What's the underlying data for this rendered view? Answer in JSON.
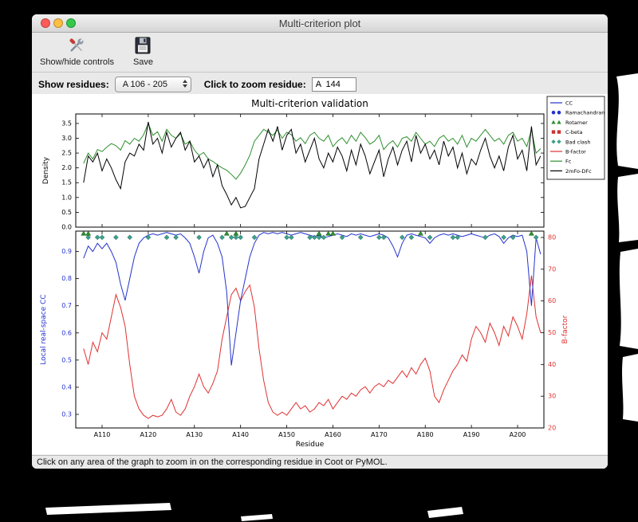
{
  "window": {
    "title": "Multi-criterion plot"
  },
  "toolbar": {
    "show_hide_label": "Show/hide controls",
    "save_label": "Save"
  },
  "controls": {
    "show_residues_label": "Show residues:",
    "residue_range_value": "A 106 - 205",
    "zoom_residue_label": "Click to zoom residue:",
    "zoom_residue_value": "A  144"
  },
  "statusbar": {
    "text": "Click on any area of the graph to zoom in on the corresponding residue in Coot or PyMOL."
  },
  "chart_data": {
    "type": "line",
    "title": "Multi-criterion validation",
    "xlabel": "Residue",
    "x_start": 106,
    "xlim": [
      104.3,
      205.7
    ],
    "xtick_vals": [
      110,
      120,
      130,
      140,
      150,
      160,
      170,
      180,
      190,
      200
    ],
    "xtick_labels": [
      "A110",
      "A120",
      "A130",
      "A140",
      "A150",
      "A160",
      "A170",
      "A180",
      "A190",
      "A200"
    ],
    "top": {
      "ylabel": "Density",
      "ylim": [
        0,
        3.82
      ],
      "ytick_vals": [
        0,
        0.5,
        1,
        1.5,
        2,
        2.5,
        3,
        3.5
      ],
      "ytick_labels": [
        "0.0",
        "0.5",
        "1.0",
        "1.5",
        "2.0",
        "2.5",
        "3.0",
        "3.5"
      ],
      "series": [
        {
          "name": "Fc",
          "color": "#2f8f2f",
          "values": [
            2.15,
            2.5,
            2.3,
            2.62,
            2.55,
            2.7,
            2.82,
            2.75,
            2.6,
            2.92,
            2.8,
            3.0,
            2.9,
            3.12,
            3.5,
            3.1,
            3.22,
            2.9,
            3.3,
            3.1,
            3.0,
            3.15,
            2.8,
            2.9,
            2.6,
            2.42,
            2.52,
            2.3,
            2.22,
            2.1,
            2.0,
            1.92,
            1.78,
            1.62,
            1.82,
            2.1,
            2.42,
            2.9,
            3.1,
            3.3,
            3.2,
            3.1,
            3.28,
            3.0,
            3.2,
            3.12,
            2.9,
            3.02,
            2.82,
            3.1,
            3.2,
            3.0,
            2.9,
            3.1,
            2.72,
            2.9,
            3.02,
            2.82,
            3.1,
            2.9,
            3.2,
            3.02,
            2.8,
            2.9,
            3.1,
            2.62,
            2.8,
            2.92,
            2.7,
            3.0,
            3.05,
            2.9,
            3.2,
            3.0,
            2.8,
            2.9,
            2.72,
            3.0,
            3.1,
            2.9,
            3.0,
            2.8,
            3.1,
            2.7,
            3.0,
            2.9,
            3.1,
            3.3,
            3.1,
            2.9,
            3.0,
            2.8,
            3.1,
            3.2,
            2.9,
            3.0,
            2.72,
            3.3,
            2.5,
            2.65
          ]
        },
        {
          "name": "2mFo-DFc",
          "color": "#000000",
          "values": [
            1.5,
            2.4,
            2.2,
            2.5,
            1.9,
            2.3,
            2.0,
            1.6,
            1.3,
            2.2,
            2.5,
            2.4,
            2.8,
            2.6,
            3.55,
            2.8,
            3.0,
            2.5,
            3.2,
            2.7,
            3.0,
            3.2,
            2.6,
            2.9,
            2.2,
            2.4,
            2.0,
            2.3,
            1.7,
            2.1,
            1.4,
            1.1,
            0.75,
            1.0,
            0.65,
            0.7,
            1.0,
            1.3,
            2.3,
            2.8,
            3.3,
            2.9,
            3.4,
            2.6,
            3.1,
            3.3,
            2.5,
            2.8,
            2.2,
            2.6,
            3.0,
            2.3,
            2.0,
            2.5,
            2.2,
            2.7,
            2.4,
            1.9,
            2.6,
            2.1,
            2.8,
            2.4,
            1.8,
            2.2,
            2.6,
            1.7,
            2.3,
            2.7,
            2.1,
            2.6,
            2.9,
            2.2,
            3.1,
            2.5,
            2.8,
            2.3,
            2.6,
            2.1,
            2.9,
            2.4,
            2.7,
            2.0,
            2.5,
            1.8,
            2.3,
            2.1,
            2.6,
            3.0,
            2.4,
            2.0,
            2.4,
            1.9,
            2.7,
            3.1,
            2.3,
            2.6,
            1.9,
            3.4,
            2.1,
            2.4
          ]
        }
      ]
    },
    "bottom": {
      "ylabel_left": "Local real-space CC",
      "ylabel_right": "B-factor",
      "ylim_left": [
        0.25,
        0.975
      ],
      "ytick_left_vals": [
        0.3,
        0.4,
        0.5,
        0.6,
        0.7,
        0.8,
        0.9
      ],
      "ytick_left_labels": [
        "0.3",
        "0.4",
        "0.5",
        "0.6",
        "0.7",
        "0.8",
        "0.9"
      ],
      "ylim_right": [
        20,
        82
      ],
      "ytick_right_vals": [
        20,
        30,
        40,
        50,
        60,
        70,
        80
      ],
      "ytick_right_labels": [
        "20",
        "30",
        "40",
        "50",
        "60",
        "70",
        "80"
      ],
      "cc": {
        "name": "CC",
        "color": "#2433cc",
        "values": [
          0.875,
          0.92,
          0.9,
          0.93,
          0.91,
          0.93,
          0.9,
          0.86,
          0.78,
          0.72,
          0.8,
          0.88,
          0.93,
          0.95,
          0.96,
          0.965,
          0.96,
          0.965,
          0.97,
          0.965,
          0.96,
          0.965,
          0.95,
          0.93,
          0.88,
          0.82,
          0.9,
          0.95,
          0.96,
          0.93,
          0.88,
          0.75,
          0.48,
          0.6,
          0.72,
          0.8,
          0.88,
          0.93,
          0.96,
          0.97,
          0.965,
          0.97,
          0.965,
          0.97,
          0.965,
          0.96,
          0.965,
          0.97,
          0.965,
          0.96,
          0.955,
          0.96,
          0.95,
          0.955,
          0.96,
          0.965,
          0.96,
          0.955,
          0.965,
          0.96,
          0.965,
          0.96,
          0.955,
          0.96,
          0.965,
          0.96,
          0.95,
          0.92,
          0.88,
          0.93,
          0.96,
          0.965,
          0.96,
          0.955,
          0.95,
          0.93,
          0.95,
          0.96,
          0.965,
          0.96,
          0.965,
          0.96,
          0.955,
          0.96,
          0.965,
          0.96,
          0.955,
          0.95,
          0.96,
          0.965,
          0.955,
          0.93,
          0.95,
          0.96,
          0.955,
          0.96,
          0.9,
          0.7,
          0.95,
          0.89
        ]
      },
      "bfactor": {
        "name": "B-factor",
        "color": "#e03131",
        "values": [
          45,
          40,
          47,
          44,
          50,
          48,
          55,
          62,
          58,
          52,
          40,
          30,
          26,
          24,
          23,
          24,
          23.5,
          24,
          26,
          29,
          25,
          24,
          26,
          30,
          33,
          37,
          33,
          31,
          34,
          38,
          48,
          55,
          62,
          64,
          60,
          63,
          65,
          58,
          45,
          35,
          28,
          25,
          24,
          25,
          24,
          26,
          28,
          26,
          27,
          25,
          26,
          28,
          27,
          29,
          26,
          28,
          30,
          29,
          31,
          30,
          32,
          33,
          31,
          33,
          34,
          33,
          35,
          34,
          36,
          38,
          36,
          39,
          37,
          40,
          42,
          38,
          30,
          28,
          32,
          35,
          38,
          40,
          43,
          41,
          48,
          52,
          50,
          47,
          53,
          50,
          46,
          52,
          49,
          55,
          52,
          48,
          56,
          68,
          55,
          50
        ]
      },
      "markers": {
        "bad_clash": {
          "label": "Bad clash",
          "color": "#3da08d",
          "cc_value": 0.952,
          "residues": [
            107,
            109,
            110,
            113,
            116,
            120,
            124,
            126,
            131,
            136,
            138,
            139,
            140,
            143,
            150,
            151,
            155,
            156,
            157,
            158,
            162,
            166,
            170,
            171,
            175,
            177,
            181,
            186,
            187,
            193,
            197,
            199,
            204
          ]
        },
        "rotamer": {
          "label": "Rotamer",
          "color": "#2f8f2f",
          "residues": [
            106,
            107,
            137,
            139,
            157,
            159,
            160,
            179,
            203
          ]
        }
      }
    },
    "legend": [
      {
        "label": "CC",
        "type": "line",
        "color": "#2433cc"
      },
      {
        "label": "Ramachandran",
        "type": "circles",
        "color": "#2433cc"
      },
      {
        "label": "Rotamer",
        "type": "triangles",
        "color": "#2f8f2f"
      },
      {
        "label": "C-beta",
        "type": "squares",
        "color": "#cc3333"
      },
      {
        "label": "Bad clash",
        "type": "diamonds",
        "color": "#3da08d"
      },
      {
        "label": "B-factor",
        "type": "line",
        "color": "#e03131"
      },
      {
        "label": "Fc",
        "type": "line",
        "color": "#2f8f2f"
      },
      {
        "label": "2mFo-DFc",
        "type": "line",
        "color": "#000000"
      }
    ]
  }
}
